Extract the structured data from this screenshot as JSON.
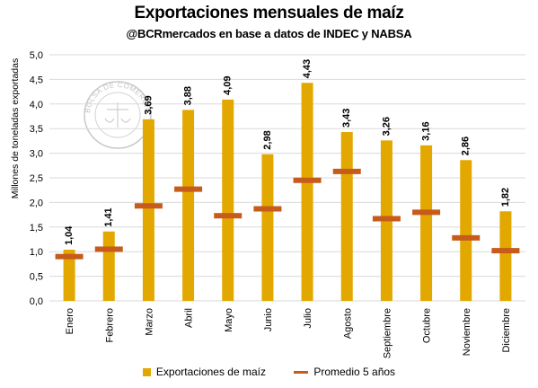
{
  "title": "Exportaciones mensuales de maíz",
  "subtitle": "@BCRmercados en base a datos de INDEC y NABSA",
  "watermark": {
    "text": "BOLSA DE COMERCIO DE ROSARIO"
  },
  "colors": {
    "bar": "#e3a800",
    "average": "#c65b1b",
    "grid": "#d9d9d9"
  },
  "chart_data": {
    "type": "bar",
    "title": "Exportaciones mensuales de maíz",
    "ylabel": "Millones de toneladas exportadas",
    "xlabel": "",
    "ylim": [
      0,
      5
    ],
    "yticks": [
      "0,0",
      "0,5",
      "1,0",
      "1,5",
      "2,0",
      "2,5",
      "3,0",
      "3,5",
      "4,0",
      "4,5",
      "5,0"
    ],
    "ytick_values": [
      0,
      0.5,
      1,
      1.5,
      2,
      2.5,
      3,
      3.5,
      4,
      4.5,
      5
    ],
    "grid": true,
    "legend_position": "bottom",
    "categories": [
      "Enero",
      "Febrero",
      "Marzo",
      "Abril",
      "Mayo",
      "Junio",
      "Julio",
      "Agosto",
      "Septiembre",
      "Octubre",
      "Noviembre",
      "Diciembre"
    ],
    "series": [
      {
        "name": "Exportaciones de maíz",
        "type": "bar",
        "values": [
          1.04,
          1.41,
          3.69,
          3.88,
          4.09,
          2.98,
          4.43,
          3.43,
          3.26,
          3.16,
          2.86,
          1.82
        ],
        "labels": [
          "1,04",
          "1,41",
          "3,69",
          "3,88",
          "4,09",
          "2,98",
          "4,43",
          "3,43",
          "3,26",
          "3,16",
          "2,86",
          "1,82"
        ]
      },
      {
        "name": "Promedio 5 años",
        "type": "marker",
        "values": [
          0.9,
          1.05,
          1.93,
          2.27,
          1.73,
          1.87,
          2.45,
          2.63,
          1.67,
          1.8,
          1.28,
          1.02
        ]
      }
    ]
  }
}
